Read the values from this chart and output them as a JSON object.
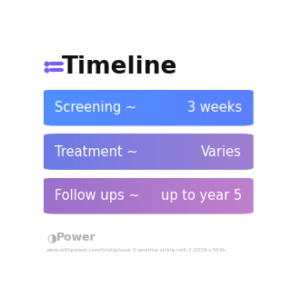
{
  "title": "Timeline",
  "title_icon_color": "#7B5CF0",
  "background_color": "#ffffff",
  "rows": [
    {
      "left_text": "Screening ~",
      "right_text": "3 weeks",
      "color_left": "#4E8FFF",
      "color_right": "#5B7FFF"
    },
    {
      "left_text": "Treatment ~",
      "right_text": "Varies",
      "color_left": "#6B7BE8",
      "color_right": "#A07FD0"
    },
    {
      "left_text": "Follow ups ~",
      "right_text": "up to year 5",
      "color_left": "#9B70CC",
      "color_right": "#C080CC"
    }
  ],
  "footer_logo_text": "Power",
  "footer_url": "www.withpower.com/trial/phase-3-anemia-sickle-cell-2-2019-c304b",
  "footer_color": "#b0b0b0"
}
